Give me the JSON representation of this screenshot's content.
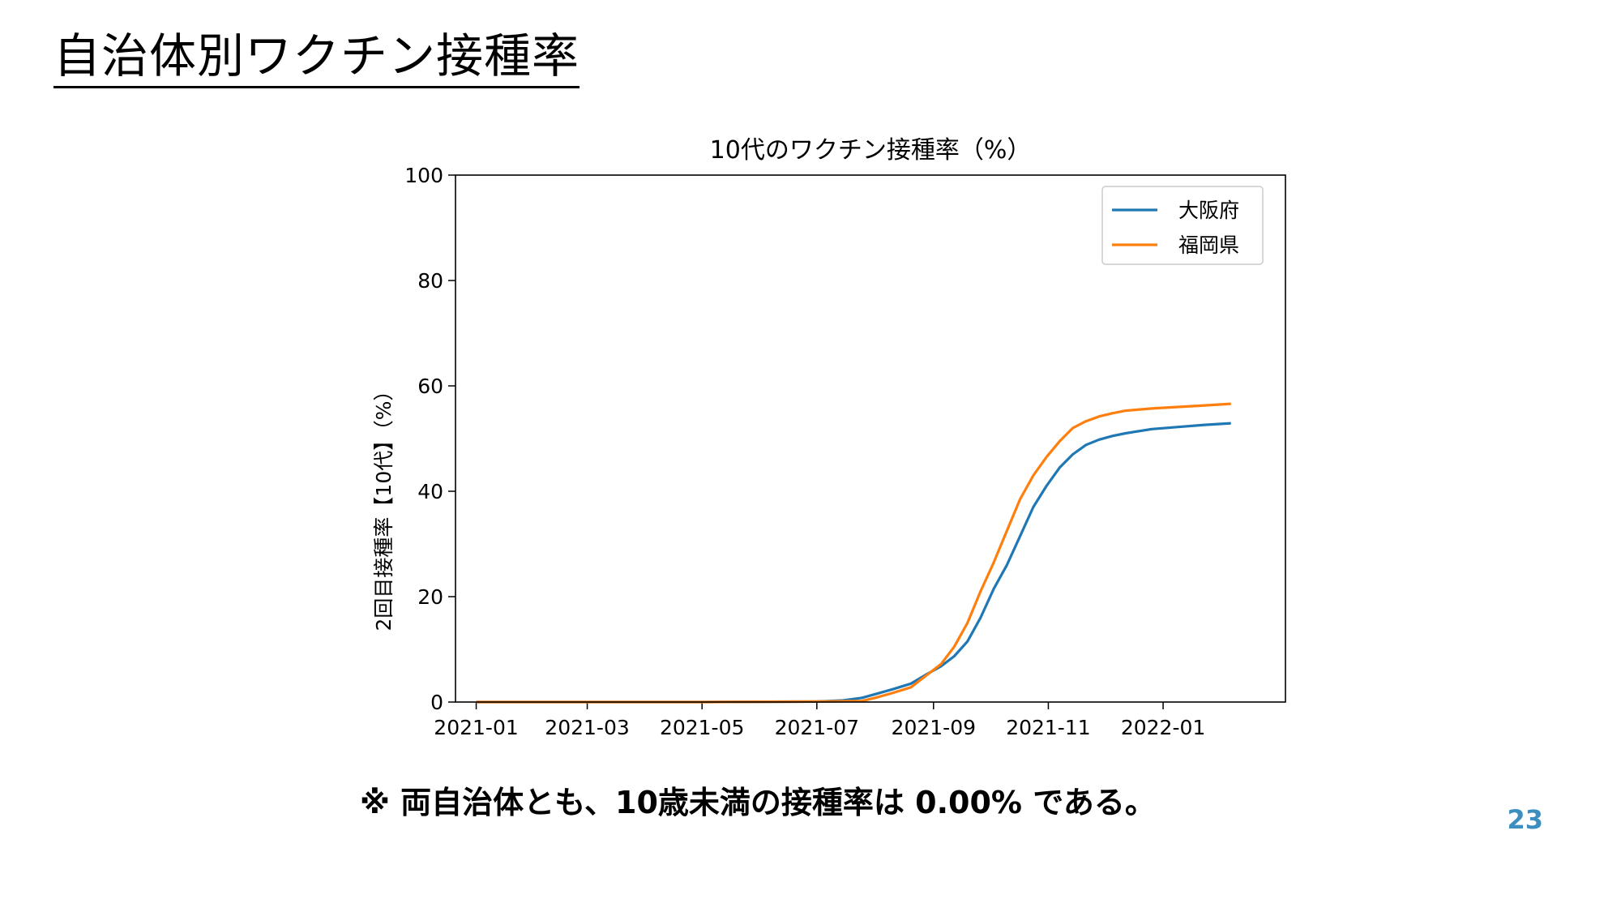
{
  "slide": {
    "title": "自治体別ワクチン接種率",
    "note": "※ 両自治体とも、10歳未満の接種率は 0.00% である。",
    "page_number": "23",
    "accent_color": "#3b8ebf"
  },
  "chart_data": {
    "type": "line",
    "title": "10代のワクチン接種率（%）",
    "xlabel": "",
    "ylabel": "2回目接種率【10代】（%）",
    "xlim": [
      "2020-12-21",
      "2022-03-07"
    ],
    "ylim": [
      0,
      100
    ],
    "x_ticks": [
      "2021-01",
      "2021-03",
      "2021-05",
      "2021-07",
      "2021-09",
      "2021-11",
      "2022-01"
    ],
    "x_tick_dates": [
      "2021-01-01",
      "2021-03-01",
      "2021-05-01",
      "2021-07-01",
      "2021-09-01",
      "2021-11-01",
      "2022-01-01"
    ],
    "y_ticks": [
      0,
      20,
      40,
      60,
      80,
      100
    ],
    "grid": false,
    "legend_position": "top-right",
    "series": [
      {
        "name": "大阪府",
        "color": "#1f77b4",
        "points": [
          [
            "2021-01-01",
            0
          ],
          [
            "2021-05-01",
            0
          ],
          [
            "2021-07-01",
            0.1
          ],
          [
            "2021-07-15",
            0.3
          ],
          [
            "2021-07-25",
            0.8
          ],
          [
            "2021-08-01",
            1.5
          ],
          [
            "2021-08-10",
            2.4
          ],
          [
            "2021-08-20",
            3.5
          ],
          [
            "2021-08-28",
            5.2
          ],
          [
            "2021-09-05",
            6.8
          ],
          [
            "2021-09-12",
            8.7
          ],
          [
            "2021-09-19",
            11.5
          ],
          [
            "2021-09-26",
            16.0
          ],
          [
            "2021-10-03",
            21.5
          ],
          [
            "2021-10-10",
            26.0
          ],
          [
            "2021-10-17",
            31.5
          ],
          [
            "2021-10-24",
            37.0
          ],
          [
            "2021-10-31",
            41.0
          ],
          [
            "2021-11-07",
            44.5
          ],
          [
            "2021-11-14",
            47.0
          ],
          [
            "2021-11-21",
            48.8
          ],
          [
            "2021-11-28",
            49.8
          ],
          [
            "2021-12-05",
            50.5
          ],
          [
            "2021-12-12",
            51.0
          ],
          [
            "2021-12-26",
            51.8
          ],
          [
            "2022-01-09",
            52.2
          ],
          [
            "2022-01-23",
            52.6
          ],
          [
            "2022-02-06",
            52.9
          ]
        ]
      },
      {
        "name": "福岡県",
        "color": "#ff7f0e",
        "points": [
          [
            "2021-01-01",
            0
          ],
          [
            "2021-05-01",
            0
          ],
          [
            "2021-07-01",
            0.1
          ],
          [
            "2021-07-25",
            0.2
          ],
          [
            "2021-08-01",
            0.8
          ],
          [
            "2021-08-10",
            1.7
          ],
          [
            "2021-08-20",
            2.8
          ],
          [
            "2021-08-28",
            5.0
          ],
          [
            "2021-09-05",
            7.2
          ],
          [
            "2021-09-12",
            10.5
          ],
          [
            "2021-09-19",
            15.0
          ],
          [
            "2021-09-26",
            21.0
          ],
          [
            "2021-10-03",
            26.5
          ],
          [
            "2021-10-10",
            32.5
          ],
          [
            "2021-10-17",
            38.5
          ],
          [
            "2021-10-24",
            43.0
          ],
          [
            "2021-10-31",
            46.5
          ],
          [
            "2021-11-07",
            49.5
          ],
          [
            "2021-11-14",
            52.0
          ],
          [
            "2021-11-21",
            53.3
          ],
          [
            "2021-11-28",
            54.2
          ],
          [
            "2021-12-05",
            54.8
          ],
          [
            "2021-12-12",
            55.3
          ],
          [
            "2021-12-26",
            55.7
          ],
          [
            "2022-01-09",
            56.0
          ],
          [
            "2022-01-23",
            56.3
          ],
          [
            "2022-02-06",
            56.6
          ]
        ]
      }
    ]
  }
}
